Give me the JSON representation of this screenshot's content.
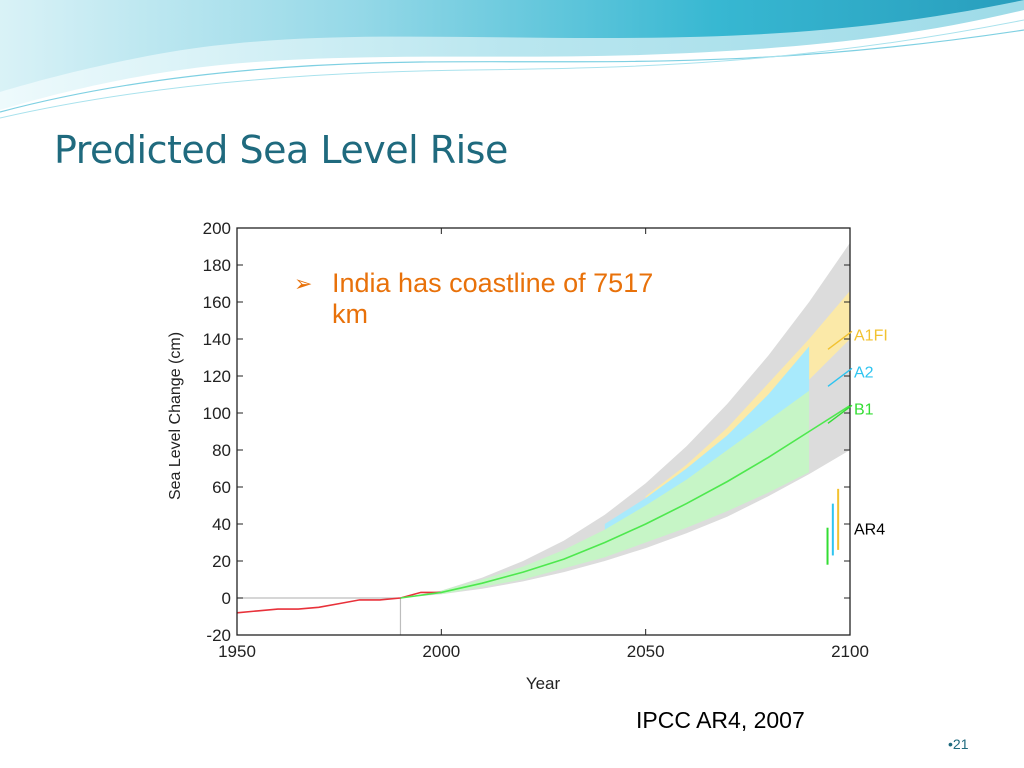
{
  "slide": {
    "title": "Predicted Sea Level Rise",
    "bullet_marker": "➢",
    "bullet_text": "India has coastline of 7517 km",
    "source": "IPCC AR4, 2007",
    "page_number": "•21"
  },
  "colors": {
    "title": "#1f6a7e",
    "bullet": "#e8710a",
    "banner_primary": "#2ab3cf",
    "banner_light": "#b9e6ef"
  },
  "chart_data": {
    "type": "area",
    "title": "",
    "xlabel": "Year",
    "ylabel": "Sea Level Change (cm)",
    "xlim": [
      1950,
      2100
    ],
    "ylim": [
      -20,
      200
    ],
    "xticks": [
      1950,
      2000,
      2050,
      2100
    ],
    "yticks": [
      -20,
      0,
      20,
      40,
      60,
      80,
      100,
      120,
      140,
      160,
      180,
      200
    ],
    "grid": false,
    "series": [
      {
        "name": "",
        "kind": "line",
        "color": "#e8313a",
        "x": [
          1950,
          1955,
          1960,
          1965,
          1970,
          1975,
          1980,
          1985,
          1990,
          1995,
          2000
        ],
        "y": [
          -8,
          -7,
          -6,
          -6,
          -5,
          -3,
          -1,
          -1,
          0,
          3,
          3
        ]
      },
      {
        "name": "B1",
        "kind": "line",
        "color": "#4ee84e",
        "x": [
          1990,
          2000,
          2010,
          2020,
          2030,
          2040,
          2050,
          2060,
          2070,
          2080,
          2090,
          2100
        ],
        "y": [
          0,
          3,
          8,
          14,
          21,
          30,
          40,
          51,
          63,
          76,
          90,
          104
        ]
      },
      {
        "name": "",
        "kind": "band",
        "color": "#dcdcdc",
        "x": [
          1990,
          2000,
          2010,
          2020,
          2030,
          2040,
          2050,
          2060,
          2070,
          2080,
          2090,
          2100
        ],
        "lower": [
          0,
          2,
          5,
          9,
          14,
          20,
          27,
          35,
          44,
          55,
          67,
          80
        ],
        "upper": [
          0,
          4,
          11,
          20,
          31,
          45,
          62,
          82,
          105,
          131,
          160,
          192
        ]
      },
      {
        "name": "A1FI",
        "kind": "band",
        "color": "#fbe9a8",
        "x": [
          2050,
          2060,
          2070,
          2080,
          2090,
          2100
        ],
        "lower": [
          50,
          64,
          80,
          98,
          118,
          140
        ],
        "upper": [
          55,
          72,
          92,
          116,
          140,
          166
        ]
      },
      {
        "name": "A2",
        "kind": "band",
        "color": "#a8eafc",
        "x": [
          2040,
          2050,
          2060,
          2070,
          2080,
          2090
        ],
        "lower": [
          35,
          46,
          58,
          70,
          85,
          100
        ],
        "upper": [
          40,
          54,
          70,
          88,
          110,
          136
        ]
      },
      {
        "name": "B1",
        "kind": "band",
        "color": "#c6f5c6",
        "x": [
          2000,
          2010,
          2020,
          2030,
          2040,
          2050,
          2060,
          2070,
          2080,
          2090
        ],
        "lower": [
          2,
          6,
          10,
          16,
          22,
          30,
          38,
          47,
          57,
          68
        ],
        "upper": [
          4,
          10,
          17,
          26,
          37,
          50,
          64,
          80,
          96,
          112
        ]
      }
    ],
    "scenario_labels": [
      {
        "name": "A1FI",
        "color": "#f2c230",
        "y": 142
      },
      {
        "name": "A2",
        "color": "#2ec4f0",
        "y": 122
      },
      {
        "name": "B1",
        "color": "#33dd33",
        "y": 102
      },
      {
        "name": "AR4",
        "color": "#000000",
        "y": 37
      }
    ],
    "ar4_ranges": [
      {
        "name": "B1",
        "color": "#33dd33",
        "low": 18,
        "high": 38
      },
      {
        "name": "A2",
        "color": "#2ec4f0",
        "low": 23,
        "high": 51
      },
      {
        "name": "A1FI",
        "color": "#f2c230",
        "low": 26,
        "high": 59
      }
    ],
    "reference_point": {
      "x": 1990,
      "y": 0
    }
  }
}
